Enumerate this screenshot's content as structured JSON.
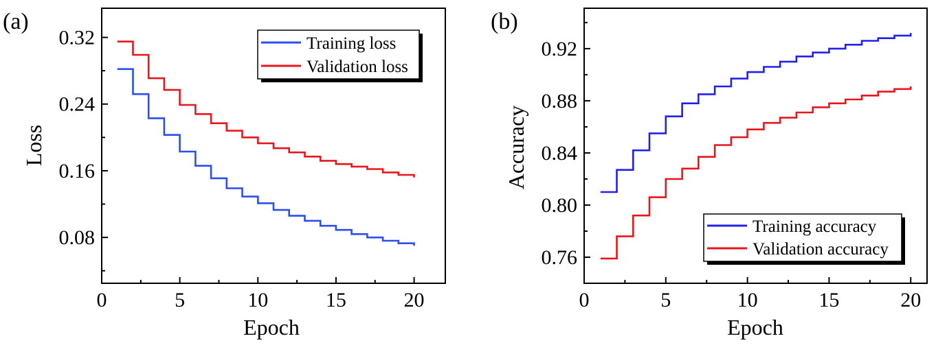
{
  "chart_data": [
    {
      "type": "line",
      "panel_label": "(a)",
      "title": "",
      "xlabel": "Epoch",
      "ylabel": "Loss",
      "xlim": [
        0,
        22
      ],
      "ylim": [
        0.025,
        0.355
      ],
      "xticks": [
        0,
        5,
        10,
        15,
        20
      ],
      "xtick_labels": [
        "0",
        "5",
        "10",
        "15",
        "20"
      ],
      "yticks": [
        0.08,
        0.16,
        0.24,
        0.32
      ],
      "ytick_labels": [
        "0.08",
        "0.16",
        "0.24",
        "0.32"
      ],
      "legend_position": "top-right",
      "step": true,
      "x": [
        1,
        2,
        3,
        4,
        5,
        6,
        7,
        8,
        9,
        10,
        11,
        12,
        13,
        14,
        15,
        16,
        17,
        18,
        19,
        20
      ],
      "series": [
        {
          "name": "Training loss",
          "color": "#2b4ef2",
          "values": [
            0.282,
            0.252,
            0.223,
            0.203,
            0.183,
            0.166,
            0.151,
            0.139,
            0.129,
            0.121,
            0.113,
            0.106,
            0.1,
            0.094,
            0.089,
            0.084,
            0.08,
            0.076,
            0.073,
            0.07
          ]
        },
        {
          "name": "Validation loss",
          "color": "#e8161b",
          "values": [
            0.315,
            0.299,
            0.271,
            0.257,
            0.239,
            0.228,
            0.217,
            0.208,
            0.2,
            0.193,
            0.187,
            0.182,
            0.177,
            0.172,
            0.168,
            0.165,
            0.162,
            0.158,
            0.155,
            0.152
          ]
        }
      ]
    },
    {
      "type": "line",
      "panel_label": "(b)",
      "title": "",
      "xlabel": "Epoch",
      "ylabel": "Accuracy",
      "xlim": [
        0,
        21
      ],
      "ylim": [
        0.74,
        0.951
      ],
      "xticks": [
        0,
        5,
        10,
        15,
        20
      ],
      "xtick_labels": [
        "0",
        "5",
        "10",
        "15",
        "20"
      ],
      "yticks": [
        0.76,
        0.8,
        0.84,
        0.88,
        0.92
      ],
      "ytick_labels": [
        "0.76",
        "0.80",
        "0.84",
        "0.88",
        "0.92"
      ],
      "legend_position": "bottom-right",
      "step": true,
      "x": [
        1,
        2,
        3,
        4,
        5,
        6,
        7,
        8,
        9,
        10,
        11,
        12,
        13,
        14,
        15,
        16,
        17,
        18,
        19,
        20
      ],
      "series": [
        {
          "name": "Training accuracy",
          "color": "#2020ee",
          "values": [
            0.81,
            0.827,
            0.842,
            0.855,
            0.868,
            0.878,
            0.885,
            0.891,
            0.897,
            0.902,
            0.906,
            0.91,
            0.914,
            0.917,
            0.92,
            0.923,
            0.926,
            0.928,
            0.93,
            0.932
          ]
        },
        {
          "name": "Validation accuracy",
          "color": "#e8161b",
          "values": [
            0.759,
            0.776,
            0.792,
            0.806,
            0.82,
            0.828,
            0.837,
            0.846,
            0.852,
            0.858,
            0.863,
            0.867,
            0.871,
            0.875,
            0.878,
            0.881,
            0.884,
            0.887,
            0.889,
            0.891
          ]
        }
      ]
    }
  ]
}
